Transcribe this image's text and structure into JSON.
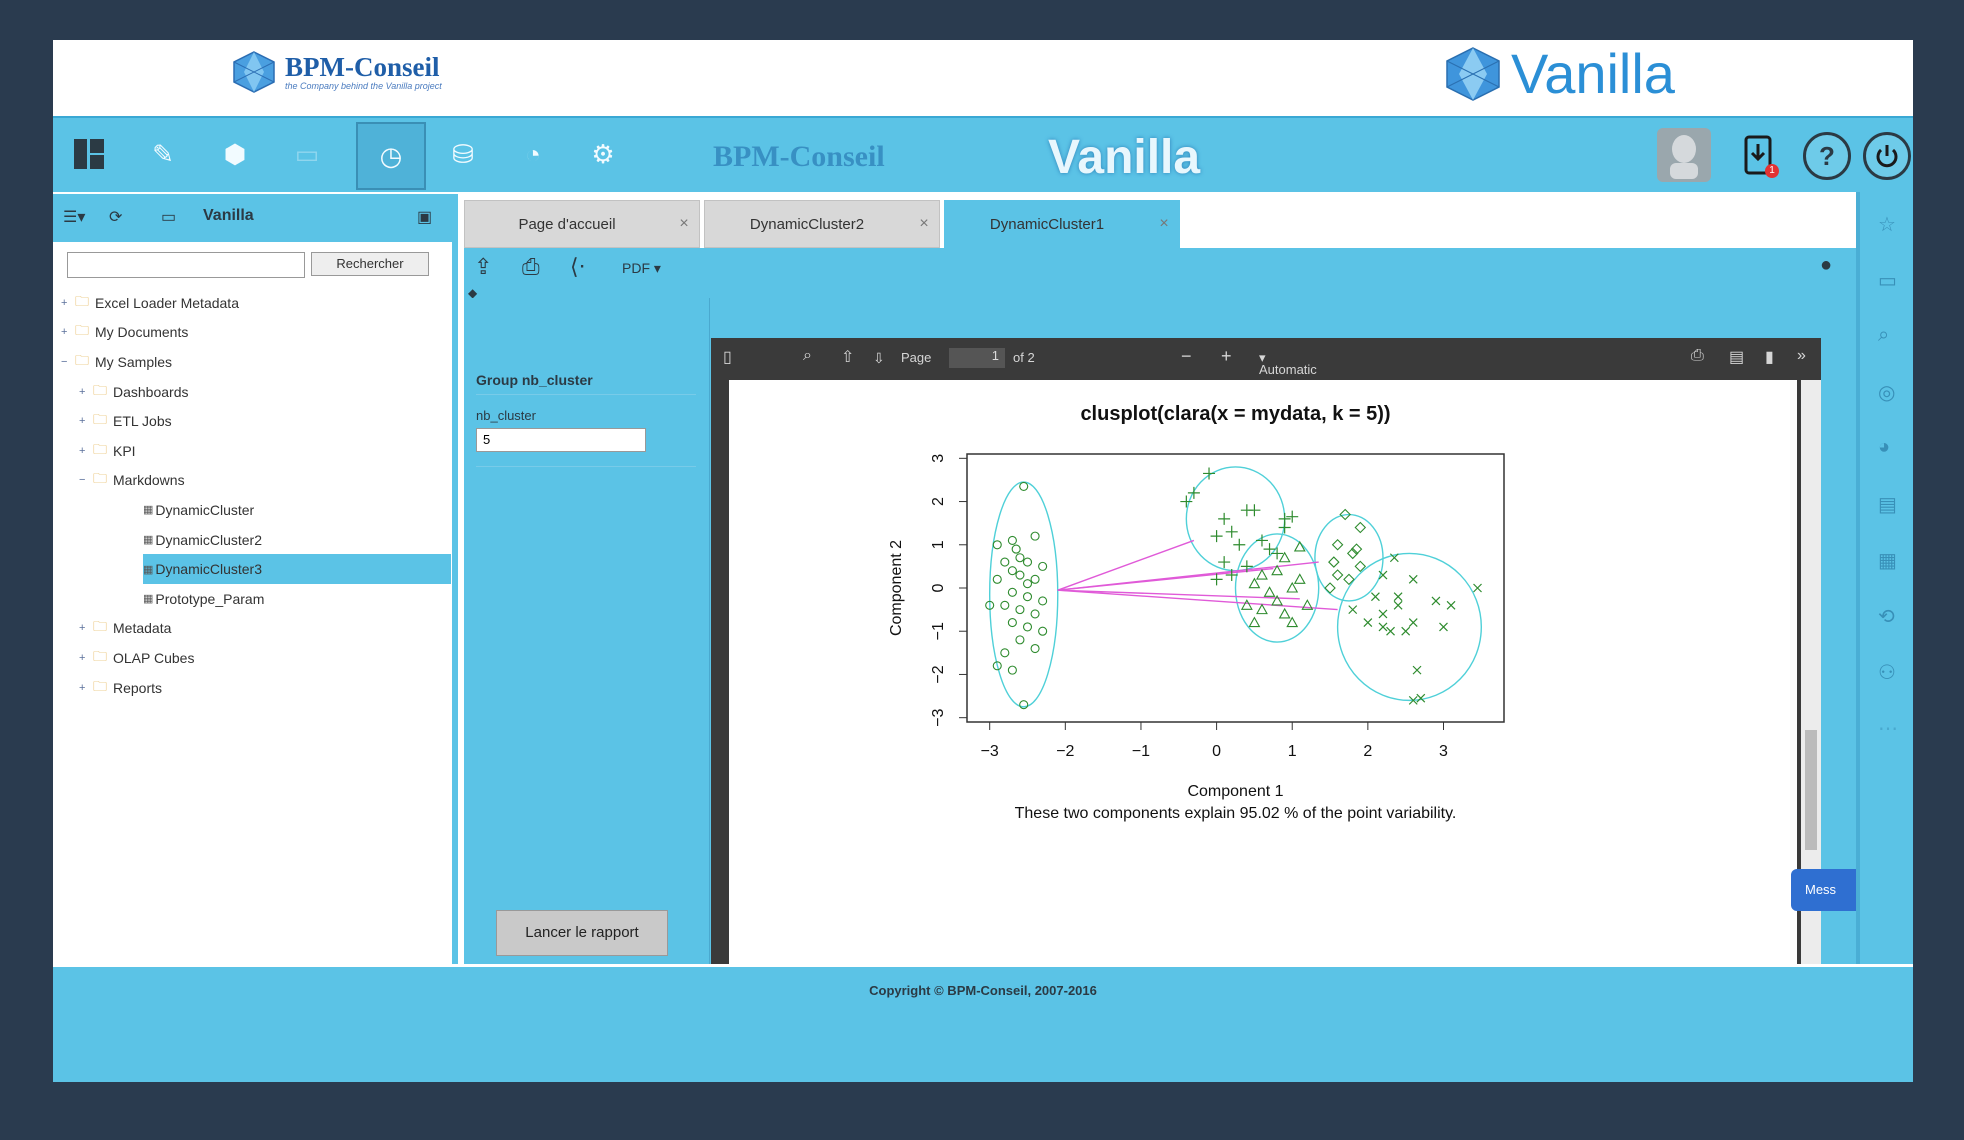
{
  "banner": {
    "left_brand": "BPM-Conseil",
    "left_tagline": "the Company behind the Vanilla project",
    "right_brand": "Vanilla"
  },
  "toolbar": {
    "brand_text": "BPM-Conseil",
    "product_text": "Vanilla",
    "notification_count": "1",
    "help_label": "?"
  },
  "left_panel": {
    "title": "Vanilla",
    "search_button": "Rechercher",
    "tree": [
      {
        "label": "Excel Loader Metadata",
        "level": 0,
        "expand": "+"
      },
      {
        "label": "My Documents",
        "level": 0,
        "expand": "+"
      },
      {
        "label": "My Samples",
        "level": 0,
        "expand": "−"
      },
      {
        "label": "Dashboards",
        "level": 1,
        "expand": "+"
      },
      {
        "label": "ETL Jobs",
        "level": 1,
        "expand": "+"
      },
      {
        "label": "KPI",
        "level": 1,
        "expand": "+"
      },
      {
        "label": "Markdowns",
        "level": 1,
        "expand": "−"
      },
      {
        "label": "DynamicCluster",
        "level": 2,
        "expand": ""
      },
      {
        "label": "DynamicCluster2",
        "level": 2,
        "expand": ""
      },
      {
        "label": "DynamicCluster3",
        "level": 2,
        "expand": "",
        "selected": true
      },
      {
        "label": "Prototype_Param",
        "level": 2,
        "expand": ""
      },
      {
        "label": "Metadata",
        "level": 1,
        "expand": "+"
      },
      {
        "label": "OLAP Cubes",
        "level": 1,
        "expand": "+"
      },
      {
        "label": "Reports",
        "level": 1,
        "expand": "+"
      }
    ]
  },
  "tabs": [
    {
      "label": "Page d'accueil",
      "close": "×"
    },
    {
      "label": "DynamicCluster2",
      "close": "×"
    },
    {
      "label": "DynamicCluster1",
      "close": "×",
      "active": true
    }
  ],
  "content_toolbar": {
    "format": "PDF"
  },
  "parameters": {
    "group_title": "Group nb_cluster",
    "field_label": "nb_cluster",
    "field_value": "5",
    "launch_button": "Lancer le rapport"
  },
  "pdf_viewer": {
    "page_label": "Page",
    "page_value": "1",
    "page_total": "of 2",
    "zoom": "Automatic Zoom"
  },
  "side_tab_label": "Mess",
  "footer": {
    "copyright": "Copyright © BPM-Conseil, 2007-2016"
  },
  "chart_data": {
    "type": "scatter",
    "title": "clusplot(clara(x = mydata, k = 5))",
    "xlabel": "Component 1",
    "ylabel": "Component 2",
    "caption": "These two components explain 95.02 % of the point variability.",
    "xlim": [
      -3.3,
      3.8
    ],
    "ylim": [
      -3.1,
      3.1
    ],
    "xticks": [
      -3,
      -2,
      -1,
      0,
      1,
      2,
      3
    ],
    "yticks": [
      -3,
      -2,
      -1,
      0,
      1,
      2,
      3
    ],
    "series": [
      {
        "marker": "circle",
        "color": "#2e8b2e",
        "points": [
          [
            -2.55,
            2.35
          ],
          [
            -2.9,
            1.0
          ],
          [
            -2.7,
            1.1
          ],
          [
            -2.4,
            1.2
          ],
          [
            -2.6,
            0.7
          ],
          [
            -2.8,
            0.6
          ],
          [
            -2.5,
            0.6
          ],
          [
            -2.3,
            0.5
          ],
          [
            -2.7,
            0.4
          ],
          [
            -2.6,
            0.3
          ],
          [
            -2.9,
            0.2
          ],
          [
            -2.5,
            0.1
          ],
          [
            -2.4,
            0.2
          ],
          [
            -2.7,
            -0.1
          ],
          [
            -2.5,
            -0.2
          ],
          [
            -2.3,
            -0.3
          ],
          [
            -2.8,
            -0.4
          ],
          [
            -2.6,
            -0.5
          ],
          [
            -2.4,
            -0.6
          ],
          [
            -2.7,
            -0.8
          ],
          [
            -2.5,
            -0.9
          ],
          [
            -3.0,
            -0.4
          ],
          [
            -2.6,
            -1.2
          ],
          [
            -2.4,
            -1.4
          ],
          [
            -2.8,
            -1.5
          ],
          [
            -2.9,
            -1.8
          ],
          [
            -2.7,
            -1.9
          ],
          [
            -2.55,
            -2.7
          ],
          [
            -2.3,
            -1.0
          ],
          [
            -2.65,
            0.9
          ]
        ]
      },
      {
        "marker": "plus",
        "color": "#2e8b2e",
        "points": [
          [
            -0.1,
            2.65
          ],
          [
            -0.4,
            2.0
          ],
          [
            -0.3,
            2.2
          ],
          [
            0.4,
            1.8
          ],
          [
            0.5,
            1.8
          ],
          [
            0.1,
            1.6
          ],
          [
            0.9,
            1.6
          ],
          [
            1.0,
            1.65
          ],
          [
            0.0,
            1.2
          ],
          [
            0.2,
            1.3
          ],
          [
            0.3,
            1.0
          ],
          [
            0.6,
            1.1
          ],
          [
            0.8,
            0.8
          ],
          [
            0.1,
            0.6
          ],
          [
            0.4,
            0.5
          ],
          [
            0.2,
            0.3
          ],
          [
            0.0,
            0.2
          ],
          [
            0.7,
            0.9
          ],
          [
            0.9,
            1.4
          ]
        ]
      },
      {
        "marker": "triangle",
        "color": "#2e8b2e",
        "points": [
          [
            1.1,
            0.95
          ],
          [
            0.9,
            0.7
          ],
          [
            0.6,
            0.3
          ],
          [
            0.8,
            0.4
          ],
          [
            1.1,
            0.2
          ],
          [
            0.5,
            0.1
          ],
          [
            0.7,
            -0.1
          ],
          [
            1.0,
            0.0
          ],
          [
            0.4,
            -0.4
          ],
          [
            0.6,
            -0.5
          ],
          [
            0.9,
            -0.6
          ],
          [
            1.2,
            -0.4
          ],
          [
            0.5,
            -0.8
          ],
          [
            1.0,
            -0.8
          ],
          [
            0.8,
            -0.3
          ]
        ]
      },
      {
        "marker": "diamond",
        "color": "#2e8b2e",
        "points": [
          [
            1.7,
            1.7
          ],
          [
            1.9,
            1.4
          ],
          [
            1.6,
            1.0
          ],
          [
            1.8,
            0.8
          ],
          [
            1.55,
            0.6
          ],
          [
            1.9,
            0.5
          ],
          [
            1.6,
            0.3
          ],
          [
            1.75,
            0.2
          ],
          [
            1.5,
            0.0
          ],
          [
            1.85,
            0.9
          ]
        ]
      },
      {
        "marker": "x",
        "color": "#2e8b2e",
        "points": [
          [
            2.35,
            0.7
          ],
          [
            3.45,
            0.0
          ],
          [
            2.2,
            0.3
          ],
          [
            2.6,
            0.2
          ],
          [
            2.9,
            -0.3
          ],
          [
            2.4,
            -0.4
          ],
          [
            2.2,
            -0.6
          ],
          [
            2.0,
            -0.8
          ],
          [
            2.6,
            -0.8
          ],
          [
            3.0,
            -0.9
          ],
          [
            3.1,
            -0.4
          ],
          [
            2.3,
            -1.0
          ],
          [
            2.5,
            -1.0
          ],
          [
            1.8,
            -0.5
          ],
          [
            2.1,
            -0.2
          ],
          [
            2.65,
            -1.9
          ],
          [
            2.6,
            -2.6
          ],
          [
            2.7,
            -2.55
          ],
          [
            2.2,
            -0.9
          ],
          [
            2.4,
            -0.2
          ]
        ]
      }
    ],
    "ellipses": [
      {
        "cx": -2.55,
        "cy": -0.15,
        "rx": 0.45,
        "ry": 2.6
      },
      {
        "cx": 0.25,
        "cy": 1.6,
        "rx": 0.65,
        "ry": 1.2
      },
      {
        "cx": 0.8,
        "cy": 0.0,
        "rx": 0.55,
        "ry": 1.25
      },
      {
        "cx": 1.75,
        "cy": 0.7,
        "rx": 0.45,
        "ry": 1.0
      },
      {
        "cx": 2.55,
        "cy": -0.9,
        "rx": 0.95,
        "ry": 1.7
      }
    ],
    "links": [
      [
        [
          -2.1,
          -0.05
        ],
        [
          -0.3,
          1.1
        ]
      ],
      [
        [
          -2.1,
          -0.05
        ],
        [
          0.75,
          0.45
        ]
      ],
      [
        [
          -2.1,
          -0.05
        ],
        [
          1.35,
          0.6
        ]
      ],
      [
        [
          -2.1,
          -0.05
        ],
        [
          1.6,
          -0.5
        ]
      ],
      [
        [
          -2.1,
          -0.05
        ],
        [
          1.1,
          -0.25
        ]
      ]
    ]
  }
}
